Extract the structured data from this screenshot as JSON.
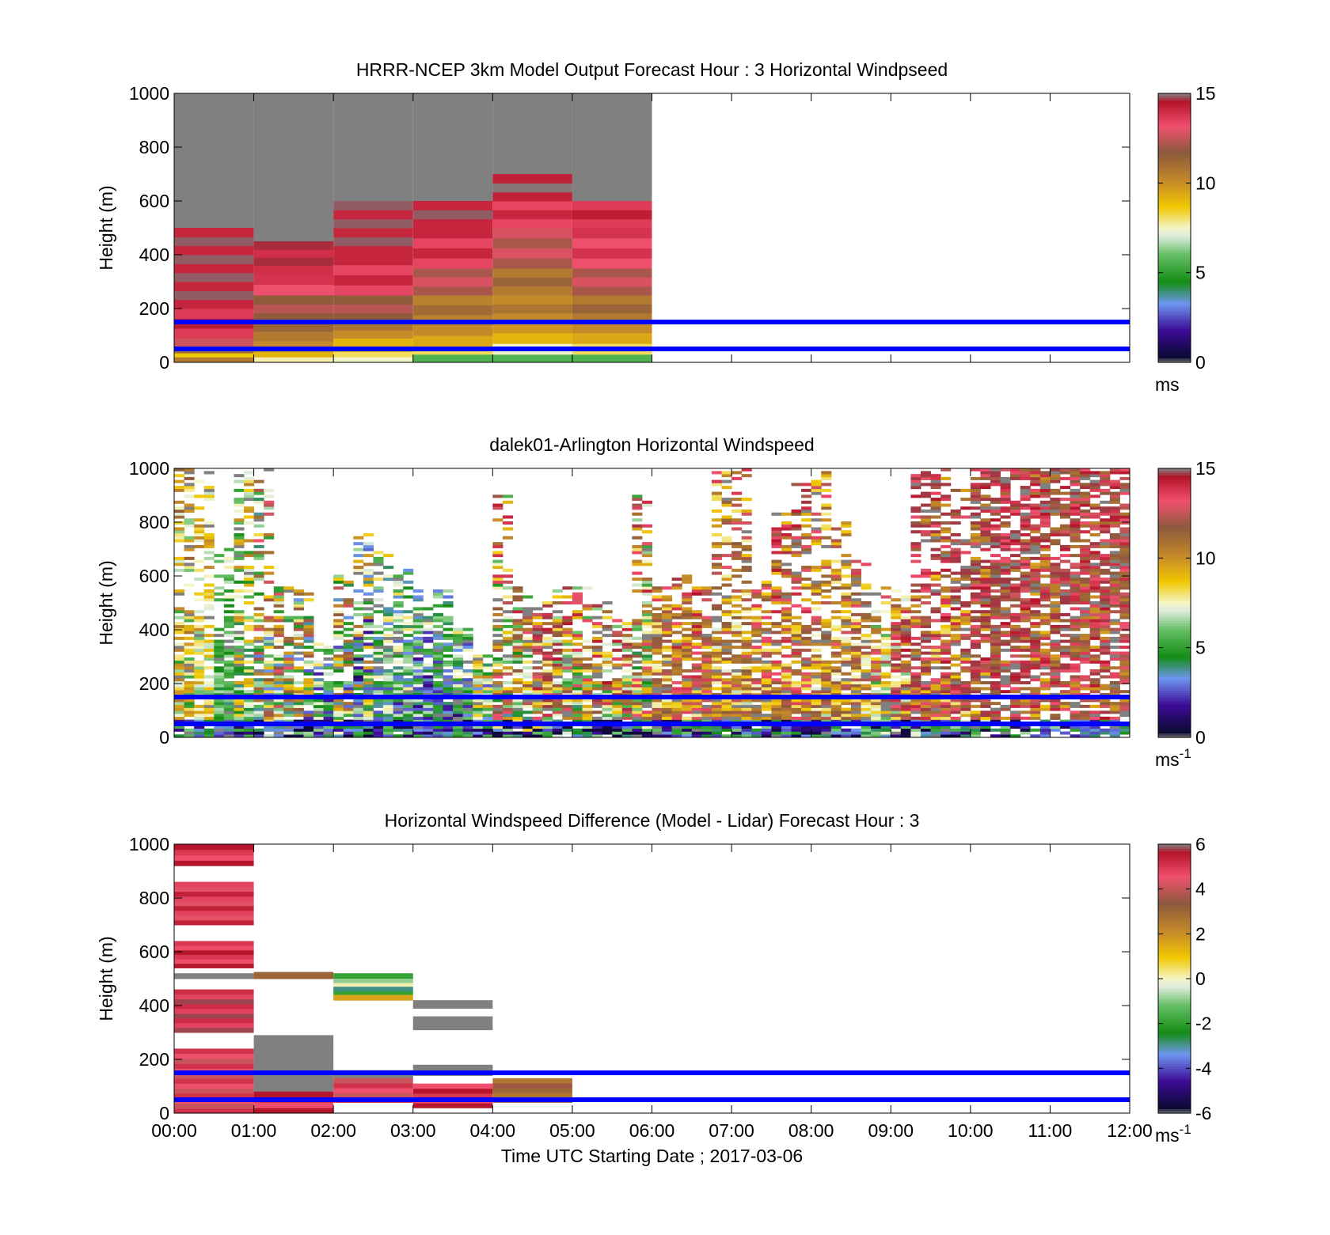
{
  "chart_data": [
    {
      "type": "heatmap",
      "title": "HRRR-NCEP 3km Model Output   Forecast Hour : 3 Horizontal Windpseed",
      "xlabel": "",
      "ylabel": "Height (m)",
      "xlim": [
        0,
        12
      ],
      "ylim": [
        0,
        1000
      ],
      "y_ticks": [
        "0",
        "200",
        "400",
        "600",
        "800",
        "1000"
      ],
      "x_ticks": [],
      "colorbar": {
        "range": [
          0,
          15
        ],
        "ticks": [
          "0",
          "5",
          "10",
          "15"
        ],
        "unit": "ms",
        "unit_sup": ""
      },
      "reference_lines_m": [
        50,
        150
      ],
      "columns": [
        {
          "x0": 0,
          "x1": 1,
          "top": 500,
          "bands": [
            [
              0,
              20,
              11
            ],
            [
              20,
              35,
              9
            ],
            [
              35,
              60,
              11.5
            ],
            [
              60,
              90,
              13
            ],
            [
              90,
              200,
              14
            ],
            [
              200,
              500,
              14.5
            ]
          ]
        },
        {
          "x0": 1,
          "x1": 2,
          "top": 450,
          "bands": [
            [
              0,
              20,
              8
            ],
            [
              20,
              40,
              9.5
            ],
            [
              40,
              80,
              10.5
            ],
            [
              80,
              150,
              11
            ],
            [
              150,
              250,
              12
            ],
            [
              250,
              330,
              13.5
            ],
            [
              330,
              450,
              14.3
            ]
          ]
        },
        {
          "x0": 2,
          "x1": 3,
          "top": 600,
          "bands": [
            [
              0,
              20,
              7.8
            ],
            [
              20,
              40,
              8.5
            ],
            [
              40,
              90,
              9.5
            ],
            [
              90,
              150,
              10.5
            ],
            [
              150,
              250,
              12
            ],
            [
              250,
              400,
              13.8
            ],
            [
              400,
              600,
              14.5
            ]
          ]
        },
        {
          "x0": 3,
          "x1": 4,
          "top": 600,
          "bands": [
            [
              0,
              30,
              6
            ],
            [
              30,
              60,
              8.5
            ],
            [
              60,
              140,
              9.8
            ],
            [
              140,
              250,
              10.8
            ],
            [
              250,
              350,
              12.5
            ],
            [
              350,
              500,
              13.8
            ],
            [
              500,
              600,
              14.5
            ]
          ]
        },
        {
          "x0": 4,
          "x1": 5,
          "top": 700,
          "bands": [
            [
              0,
              30,
              6
            ],
            [
              30,
              70,
              7.8
            ],
            [
              70,
              150,
              9.5
            ],
            [
              150,
              250,
              10.5
            ],
            [
              250,
              350,
              11
            ],
            [
              350,
              500,
              12.5
            ],
            [
              500,
              600,
              13.8
            ],
            [
              600,
              700,
              14.6
            ]
          ]
        },
        {
          "x0": 5,
          "x1": 6,
          "top": 600,
          "bands": [
            [
              0,
              30,
              6
            ],
            [
              30,
              70,
              8.5
            ],
            [
              70,
              150,
              9.8
            ],
            [
              150,
              250,
              11
            ],
            [
              250,
              350,
              12.5
            ],
            [
              350,
              500,
              13.5
            ],
            [
              500,
              600,
              14
            ]
          ]
        }
      ],
      "above_top_color": "#808080"
    },
    {
      "type": "heatmap",
      "title": "dalek01-Arlington  Horizontal Windspeed",
      "xlabel": "",
      "ylabel": "Height (m)",
      "xlim": [
        0,
        12
      ],
      "ylim": [
        0,
        1000
      ],
      "y_ticks": [
        "0",
        "200",
        "400",
        "600",
        "800",
        "1000"
      ],
      "x_ticks": [],
      "colorbar": {
        "range": [
          0,
          15
        ],
        "ticks": [
          "0",
          "5",
          "10",
          "15"
        ],
        "unit": "ms",
        "unit_sup": "-1"
      },
      "reference_lines_m": [
        50,
        150
      ],
      "column_width_h": 0.25,
      "profiles": [
        {
          "t": 0.0,
          "top": 1000,
          "mean": 9,
          "sd": 3
        },
        {
          "t": 0.25,
          "top": 1000,
          "mean": 9,
          "sd": 2
        },
        {
          "t": 0.5,
          "top": 700,
          "mean": 6.5,
          "sd": 1.5
        },
        {
          "t": 0.75,
          "top": 1000,
          "mean": 8,
          "sd": 3
        },
        {
          "t": 1.0,
          "top": 1000,
          "mean": 9,
          "sd": 5
        },
        {
          "t": 1.25,
          "top": 580,
          "mean": 9,
          "sd": 5
        },
        {
          "t": 1.5,
          "top": 550,
          "mean": 8,
          "sd": 5
        },
        {
          "t": 1.75,
          "top": 350,
          "mean": 5.5,
          "sd": 3
        },
        {
          "t": 2.0,
          "top": 600,
          "mean": 8,
          "sd": 5
        },
        {
          "t": 2.25,
          "top": 750,
          "mean": 7,
          "sd": 5
        },
        {
          "t": 2.5,
          "top": 700,
          "mean": 6,
          "sd": 3
        },
        {
          "t": 2.75,
          "top": 620,
          "mean": 6,
          "sd": 3
        },
        {
          "t": 3.0,
          "top": 550,
          "mean": 5.5,
          "sd": 3
        },
        {
          "t": 3.25,
          "top": 540,
          "mean": 5,
          "sd": 2
        },
        {
          "t": 3.5,
          "top": 400,
          "mean": 5.5,
          "sd": 3
        },
        {
          "t": 3.75,
          "top": 300,
          "mean": 7,
          "sd": 4
        },
        {
          "t": 4.0,
          "top": 900,
          "mean": 10,
          "sd": 5
        },
        {
          "t": 4.25,
          "top": 560,
          "mean": 10,
          "sd": 5
        },
        {
          "t": 4.5,
          "top": 500,
          "mean": 12,
          "sd": 5
        },
        {
          "t": 4.75,
          "top": 560,
          "mean": 11,
          "sd": 5
        },
        {
          "t": 5.0,
          "top": 560,
          "mean": 10,
          "sd": 5
        },
        {
          "t": 5.25,
          "top": 500,
          "mean": 11,
          "sd": 5
        },
        {
          "t": 5.5,
          "top": 440,
          "mean": 11,
          "sd": 5
        },
        {
          "t": 5.75,
          "top": 900,
          "mean": 10,
          "sd": 5
        },
        {
          "t": 6.0,
          "top": 560,
          "mean": 11,
          "sd": 3
        },
        {
          "t": 6.25,
          "top": 600,
          "mean": 12,
          "sd": 3
        },
        {
          "t": 6.5,
          "top": 570,
          "mean": 12,
          "sd": 3
        },
        {
          "t": 6.75,
          "top": 1000,
          "mean": 11,
          "sd": 3
        },
        {
          "t": 7.0,
          "top": 1000,
          "mean": 11,
          "sd": 3
        },
        {
          "t": 7.25,
          "top": 600,
          "mean": 11.5,
          "sd": 3
        },
        {
          "t": 7.5,
          "top": 850,
          "mean": 12,
          "sd": 3
        },
        {
          "t": 7.75,
          "top": 950,
          "mean": 12,
          "sd": 3
        },
        {
          "t": 8.0,
          "top": 1000,
          "mean": 11,
          "sd": 3
        },
        {
          "t": 8.25,
          "top": 800,
          "mean": 11,
          "sd": 3
        },
        {
          "t": 8.5,
          "top": 650,
          "mean": 11,
          "sd": 3
        },
        {
          "t": 8.75,
          "top": 560,
          "mean": 10,
          "sd": 4
        },
        {
          "t": 9.0,
          "top": 550,
          "mean": 12,
          "sd": 5
        },
        {
          "t": 9.25,
          "top": 1000,
          "mean": 14,
          "sd": 4
        },
        {
          "t": 9.5,
          "top": 1000,
          "mean": 13,
          "sd": 4
        },
        {
          "t": 9.75,
          "top": 920,
          "mean": 13,
          "sd": 4
        },
        {
          "t": 10.0,
          "top": 1000,
          "mean": 14,
          "sd": 4
        },
        {
          "t": 10.25,
          "top": 1000,
          "mean": 14,
          "sd": 3
        },
        {
          "t": 10.5,
          "top": 1000,
          "mean": 14,
          "sd": 3
        },
        {
          "t": 10.75,
          "top": 1000,
          "mean": 13,
          "sd": 3
        },
        {
          "t": 11.0,
          "top": 1000,
          "mean": 13.5,
          "sd": 3
        },
        {
          "t": 11.25,
          "top": 1000,
          "mean": 13,
          "sd": 2
        },
        {
          "t": 11.5,
          "top": 1000,
          "mean": 13.5,
          "sd": 3
        },
        {
          "t": 11.75,
          "top": 1000,
          "mean": 13,
          "sd": 2
        }
      ]
    },
    {
      "type": "heatmap",
      "title": "Horizontal Windspeed Difference (Model - Lidar) Forecast Hour : 3",
      "xlabel": "Time UTC  Starting Date ; 2017-03-06",
      "ylabel": "Height (m)",
      "xlim": [
        0,
        12
      ],
      "ylim": [
        0,
        1000
      ],
      "y_ticks": [
        "0",
        "200",
        "400",
        "600",
        "800",
        "1000"
      ],
      "x_ticks": [
        "00:00",
        "01:00",
        "02:00",
        "03:00",
        "04:00",
        "05:00",
        "06:00",
        "07:00",
        "08:00",
        "09:00",
        "10:00",
        "11:00",
        "12:00"
      ],
      "colorbar": {
        "range": [
          -6,
          6
        ],
        "ticks": [
          "-6",
          "-4",
          "-2",
          "0",
          "2",
          "4",
          "6"
        ],
        "unit": "ms",
        "unit_sup": "-1"
      },
      "reference_lines_m": [
        50,
        150
      ],
      "cells": [
        {
          "x0": 0,
          "x1": 1,
          "y0": 920,
          "y1": 1000,
          "v": 5
        },
        {
          "x0": 0,
          "x1": 1,
          "y0": 700,
          "y1": 860,
          "v": 4.8
        },
        {
          "x0": 0,
          "x1": 1,
          "y0": 540,
          "y1": 640,
          "v": 5
        },
        {
          "x0": 0,
          "x1": 1,
          "y0": 500,
          "y1": 520,
          "v": 6
        },
        {
          "x0": 0,
          "x1": 1,
          "y0": 300,
          "y1": 460,
          "v": 5.2
        },
        {
          "x0": 0,
          "x1": 1,
          "y0": 0,
          "y1": 240,
          "v": 4.5
        },
        {
          "x0": 1,
          "x1": 2,
          "y0": 500,
          "y1": 525,
          "v": 2.5
        },
        {
          "x0": 1,
          "x1": 2,
          "y0": 80,
          "y1": 290,
          "v": 6
        },
        {
          "x0": 1,
          "x1": 2,
          "y0": 0,
          "y1": 80,
          "v": 5
        },
        {
          "x0": 2,
          "x1": 3,
          "y0": 500,
          "y1": 520,
          "v": -2.5
        },
        {
          "x0": 2,
          "x1": 3,
          "y0": 470,
          "y1": 500,
          "v": -0.5
        },
        {
          "x0": 2,
          "x1": 3,
          "y0": 440,
          "y1": 470,
          "v": -2.5
        },
        {
          "x0": 2,
          "x1": 3,
          "y0": 420,
          "y1": 440,
          "v": 1
        },
        {
          "x0": 2,
          "x1": 3,
          "y0": 130,
          "y1": 160,
          "v": 6
        },
        {
          "x0": 2,
          "x1": 3,
          "y0": 40,
          "y1": 130,
          "v": 4.5
        },
        {
          "x0": 3,
          "x1": 4,
          "y0": 390,
          "y1": 420,
          "v": 6
        },
        {
          "x0": 3,
          "x1": 4,
          "y0": 310,
          "y1": 360,
          "v": 6
        },
        {
          "x0": 3,
          "x1": 4,
          "y0": 140,
          "y1": 180,
          "v": 6
        },
        {
          "x0": 3,
          "x1": 4,
          "y0": 20,
          "y1": 110,
          "v": 5
        },
        {
          "x0": 4,
          "x1": 5,
          "y0": 40,
          "y1": 130,
          "v": 3
        },
        {
          "x0": 5,
          "x1": 6,
          "y0": 0,
          "y1": 0,
          "v": 0
        }
      ]
    }
  ]
}
